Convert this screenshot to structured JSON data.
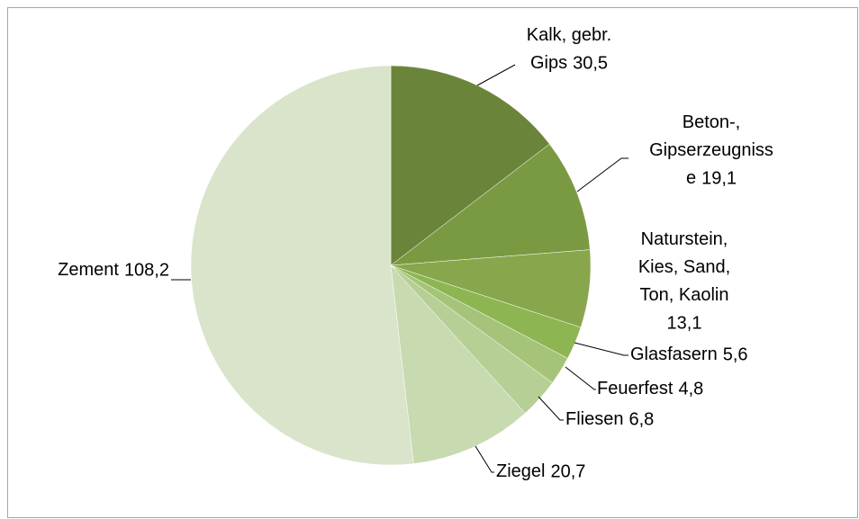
{
  "chart_data": {
    "type": "pie",
    "categories": [
      "Kalk, gebr. Gips",
      "Beton-, Gipserzeugnisse",
      "Naturstein, Kies, Sand, Ton, Kaolin",
      "Glasfasern",
      "Feuerfest",
      "Fliesen",
      "Ziegel",
      "Zement"
    ],
    "values": [
      30.5,
      19.1,
      13.1,
      5.6,
      4.8,
      6.8,
      20.7,
      108.2
    ],
    "value_labels": [
      "30,5",
      "19,1",
      "13,1",
      "5,6",
      "4,8",
      "6,8",
      "20,7",
      "108,2"
    ],
    "colors": [
      "#6a853a",
      "#7a9a42",
      "#88a64c",
      "#8db652",
      "#a5c47a",
      "#b6cf94",
      "#c8dab0",
      "#d9e4cb"
    ]
  }
}
